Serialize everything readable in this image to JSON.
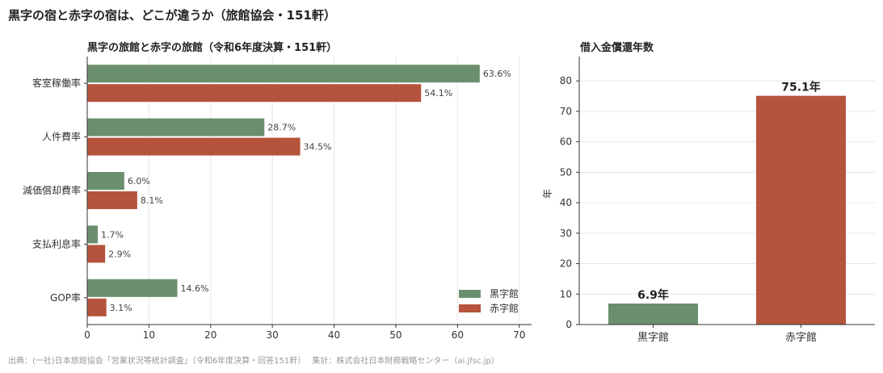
{
  "title": "黒字の宿と赤字の宿は、どこが違うか（旅館協会・151軒）",
  "footer": "出典：(一社)日本旅館協会「営業状況等統計調査」（令和6年度決算・回答151軒）　 集計：株式会社日本財務戦略センター（ai.jfsc.jp）",
  "colors": {
    "black_inn": "#6b8f6e",
    "red_inn": "#b5543c",
    "grid": "#e6e6e6",
    "axis": "#333333"
  },
  "chart_data": [
    {
      "type": "bar",
      "orientation": "horizontal",
      "title": "黒字の旅館と赤字の旅館（令和6年度決算・151軒）",
      "categories": [
        "客室稼働率",
        "人件費率",
        "減価償却費率",
        "支払利息率",
        "GOP率"
      ],
      "series": [
        {
          "name": "黒字館",
          "values": [
            63.6,
            28.7,
            6.0,
            1.7,
            14.6
          ],
          "labels": [
            "63.6%",
            "28.7%",
            "6.0%",
            "1.7%",
            "14.6%"
          ]
        },
        {
          "name": "赤字館",
          "values": [
            54.1,
            34.5,
            8.1,
            2.9,
            3.1
          ],
          "labels": [
            "54.1%",
            "34.5%",
            "8.1%",
            "2.9%",
            "3.1%"
          ]
        }
      ],
      "xlim": [
        0,
        72
      ],
      "xticks": [
        0,
        10,
        20,
        30,
        40,
        50,
        60,
        70
      ],
      "grid": "vertical",
      "legend": "bottom-right"
    },
    {
      "type": "bar",
      "title": "借入金償還年数",
      "categories": [
        "黒字館",
        "赤字館"
      ],
      "values": [
        6.9,
        75.1
      ],
      "labels": [
        "6.9年",
        "75.1年"
      ],
      "ylabel": "年",
      "ylim": [
        0,
        88
      ],
      "yticks": [
        0,
        10,
        20,
        30,
        40,
        50,
        60,
        70,
        80
      ],
      "grid": "horizontal"
    }
  ]
}
